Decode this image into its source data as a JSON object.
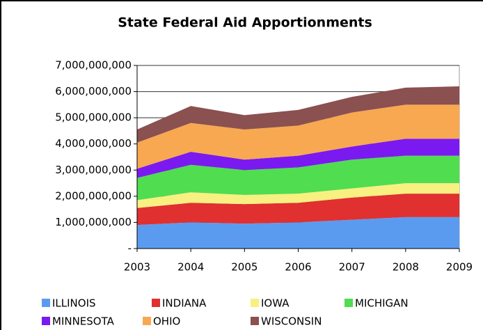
{
  "chart_data": {
    "type": "stacked_area",
    "title": "State Federal Aid Apportionments",
    "x": [
      2003,
      2004,
      2005,
      2006,
      2007,
      2008,
      2009
    ],
    "series": [
      {
        "name": "ILLINOIS",
        "color": "#5b9bef",
        "values": [
          900000000,
          1000000000,
          950000000,
          1000000000,
          1100000000,
          1200000000,
          1200000000
        ]
      },
      {
        "name": "INDIANA",
        "color": "#e03030",
        "values": [
          650000000,
          750000000,
          750000000,
          750000000,
          850000000,
          900000000,
          900000000
        ]
      },
      {
        "name": "IOWA",
        "color": "#f8f080",
        "values": [
          300000000,
          400000000,
          350000000,
          350000000,
          350000000,
          400000000,
          400000000
        ]
      },
      {
        "name": "MICHIGAN",
        "color": "#50dd50",
        "values": [
          850000000,
          1050000000,
          950000000,
          1000000000,
          1100000000,
          1050000000,
          1050000000
        ]
      },
      {
        "name": "MINNESOTA",
        "color": "#7a1af0",
        "values": [
          350000000,
          500000000,
          400000000,
          450000000,
          500000000,
          650000000,
          650000000
        ]
      },
      {
        "name": "OHIO",
        "color": "#f8a850",
        "values": [
          1000000000,
          1100000000,
          1150000000,
          1150000000,
          1300000000,
          1300000000,
          1300000000
        ]
      },
      {
        "name": "WISCONSIN",
        "color": "#8b5050",
        "values": [
          500000000,
          650000000,
          550000000,
          600000000,
          600000000,
          650000000,
          700000000
        ]
      }
    ],
    "xlim": [
      2003,
      2009
    ],
    "xticks": [
      2003,
      2004,
      2005,
      2006,
      2007,
      2008,
      2009
    ],
    "ylim": [
      0,
      7000000000
    ],
    "yticks": [
      {
        "value": 0,
        "label": "-"
      },
      {
        "value": 1000000000,
        "label": "1,000,000,000"
      },
      {
        "value": 2000000000,
        "label": "2,000,000,000"
      },
      {
        "value": 3000000000,
        "label": "3,000,000,000"
      },
      {
        "value": 4000000000,
        "label": "4,000,000,000"
      },
      {
        "value": 5000000000,
        "label": "5,000,000,000"
      },
      {
        "value": 6000000000,
        "label": "6,000,000,000"
      },
      {
        "value": 7000000000,
        "label": "7,000,000,000"
      }
    ],
    "grid": true,
    "legend": "bottom"
  }
}
